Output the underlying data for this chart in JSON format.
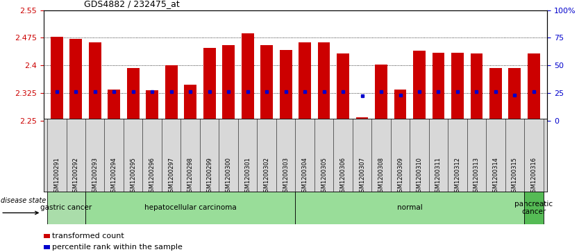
{
  "title": "GDS4882 / 232475_at",
  "samples": [
    "GSM1200291",
    "GSM1200292",
    "GSM1200293",
    "GSM1200294",
    "GSM1200295",
    "GSM1200296",
    "GSM1200297",
    "GSM1200298",
    "GSM1200299",
    "GSM1200300",
    "GSM1200301",
    "GSM1200302",
    "GSM1200303",
    "GSM1200304",
    "GSM1200305",
    "GSM1200306",
    "GSM1200307",
    "GSM1200308",
    "GSM1200309",
    "GSM1200310",
    "GSM1200311",
    "GSM1200312",
    "GSM1200313",
    "GSM1200314",
    "GSM1200315",
    "GSM1200316"
  ],
  "bar_values": [
    2.478,
    2.472,
    2.462,
    2.335,
    2.393,
    2.333,
    2.4,
    2.348,
    2.447,
    2.456,
    2.487,
    2.456,
    2.442,
    2.462,
    2.462,
    2.433,
    2.26,
    2.402,
    2.335,
    2.44,
    2.434,
    2.435,
    2.432,
    2.394,
    2.394,
    2.433
  ],
  "dot_values": [
    2.33,
    2.33,
    2.33,
    2.33,
    2.33,
    2.33,
    2.33,
    2.33,
    2.33,
    2.33,
    2.33,
    2.33,
    2.33,
    2.33,
    2.33,
    2.33,
    2.318,
    2.33,
    2.32,
    2.33,
    2.33,
    2.33,
    2.33,
    2.33,
    2.32,
    2.33
  ],
  "ylim": [
    2.25,
    2.55
  ],
  "yticks_left": [
    2.25,
    2.325,
    2.4,
    2.475,
    2.55
  ],
  "yticks_right_vals": [
    0,
    25,
    50,
    75,
    100
  ],
  "bar_color": "#cc0000",
  "dot_color": "#0000cc",
  "grid_values": [
    2.325,
    2.4,
    2.475
  ],
  "disease_groups": [
    {
      "label": "gastric cancer",
      "start": 0,
      "end": 2,
      "color": "#aaddaa"
    },
    {
      "label": "hepatocellular carcinoma",
      "start": 2,
      "end": 13,
      "color": "#99dd99"
    },
    {
      "label": "normal",
      "start": 13,
      "end": 25,
      "color": "#99dd99"
    },
    {
      "label": "pancreatic\ncancer",
      "start": 25,
      "end": 26,
      "color": "#55bb55"
    }
  ]
}
